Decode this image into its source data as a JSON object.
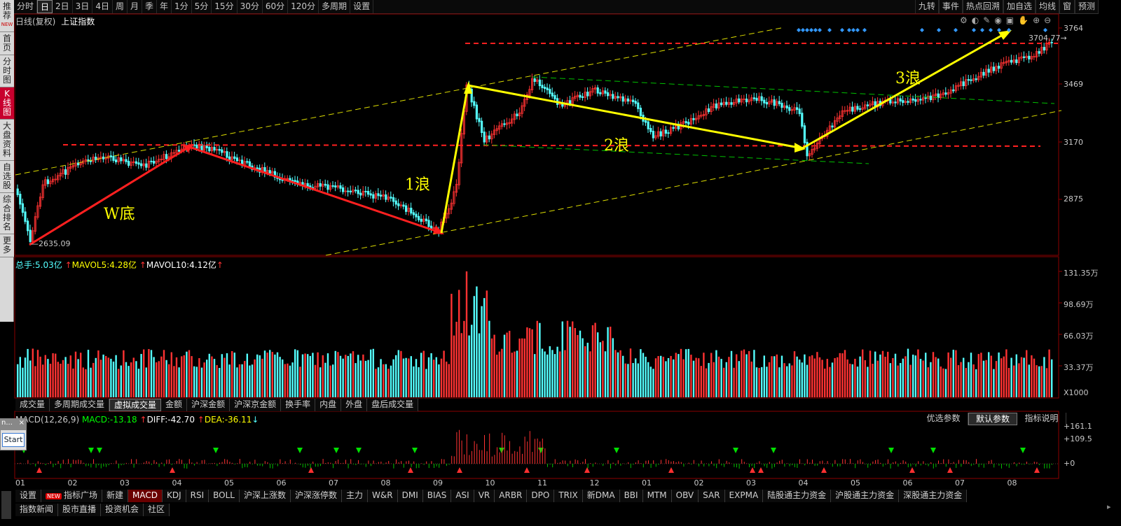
{
  "period_bar": {
    "items": [
      "分时",
      "日",
      "2日",
      "3日",
      "4日",
      "周",
      "月",
      "季",
      "年",
      "1分",
      "5分",
      "15分",
      "30分",
      "60分",
      "120分",
      "多周期",
      "设置"
    ],
    "active": "日"
  },
  "right_tools": [
    "九转",
    "事件",
    "热点回溯",
    "加自选",
    "均线",
    "窗",
    "预测"
  ],
  "sidebar": [
    {
      "label": "推荐",
      "badge": "NEW"
    },
    {
      "label": "首页"
    },
    {
      "label": "分时图"
    },
    {
      "label": "K线图",
      "active": true
    },
    {
      "label": "大盘资料"
    },
    {
      "label": "自选股"
    },
    {
      "label": "综合排名"
    },
    {
      "label": "更多"
    }
  ],
  "chart_header": {
    "period": "日线(复权)",
    "name": "上证指数"
  },
  "price_axis": [
    "3764",
    "3469",
    "3170",
    "2875"
  ],
  "annotations": {
    "low_value": "2635.09",
    "high_value": "3704.77",
    "w_bottom": "W底",
    "wave1": "1浪",
    "wave2": "2浪",
    "wave3": "3浪"
  },
  "volume_header": {
    "zongshou_label": "总手:",
    "zongshou": "5.03亿",
    "mavol5_label": "MAVOL5:",
    "mavol5": "4.28亿",
    "mavol10_label": "MAVOL10:",
    "mavol10": "4.12亿"
  },
  "volume_axis": [
    "131.35万",
    "98.69万",
    "66.03万",
    "33.37万",
    "X1000"
  ],
  "volume_tabs": {
    "items": [
      "成交量",
      "多周期成交量",
      "虚拟成交量",
      "金额",
      "沪深金额",
      "沪深京金额",
      "换手率",
      "内盘",
      "外盘",
      "盘后成交量"
    ],
    "active": "虚拟成交量"
  },
  "macd_header": {
    "name": "MACD(12,26,9)",
    "macd_label": "MACD:",
    "macd": "-13.18",
    "diff_label": "DIFF:",
    "diff": "-42.70",
    "dea_label": "DEA:",
    "dea": "-36.11"
  },
  "macd_buttons": [
    "优选参数",
    "默认参数",
    "指标说明"
  ],
  "macd_axis": [
    "+161.1",
    "+109.5",
    "+0"
  ],
  "month_labels": [
    "01",
    "02",
    "03",
    "04",
    "05",
    "06",
    "07",
    "08",
    "09",
    "10",
    "11",
    "12",
    "01",
    "02",
    "03",
    "04",
    "05",
    "06",
    "07",
    "08"
  ],
  "indicator_tabs": {
    "items": [
      "设置",
      "指标广场",
      "新建",
      "MACD",
      "KDJ",
      "RSI",
      "BOLL",
      "沪深上涨数",
      "沪深涨停数",
      "主力",
      "W&R",
      "DMI",
      "BIAS",
      "ASI",
      "VR",
      "ARBR",
      "DPO",
      "TRIX",
      "新DMA",
      "BBI",
      "MTM",
      "OBV",
      "SAR",
      "EXPMA",
      "陆股通主力资金",
      "沪股通主力资金",
      "深股通主力资金"
    ],
    "active": "MACD",
    "new_badge": "NEW"
  },
  "news_tabs": [
    "指数新闻",
    "股市直播",
    "投资机会",
    "社区"
  ],
  "floating_widget": {
    "title": "n...",
    "button": "Start"
  },
  "colors": {
    "up": "#ff3232",
    "down": "#54ffff",
    "yellow": "#ffff00",
    "dashed_red": "#ff2020",
    "green": "#00c000"
  }
}
